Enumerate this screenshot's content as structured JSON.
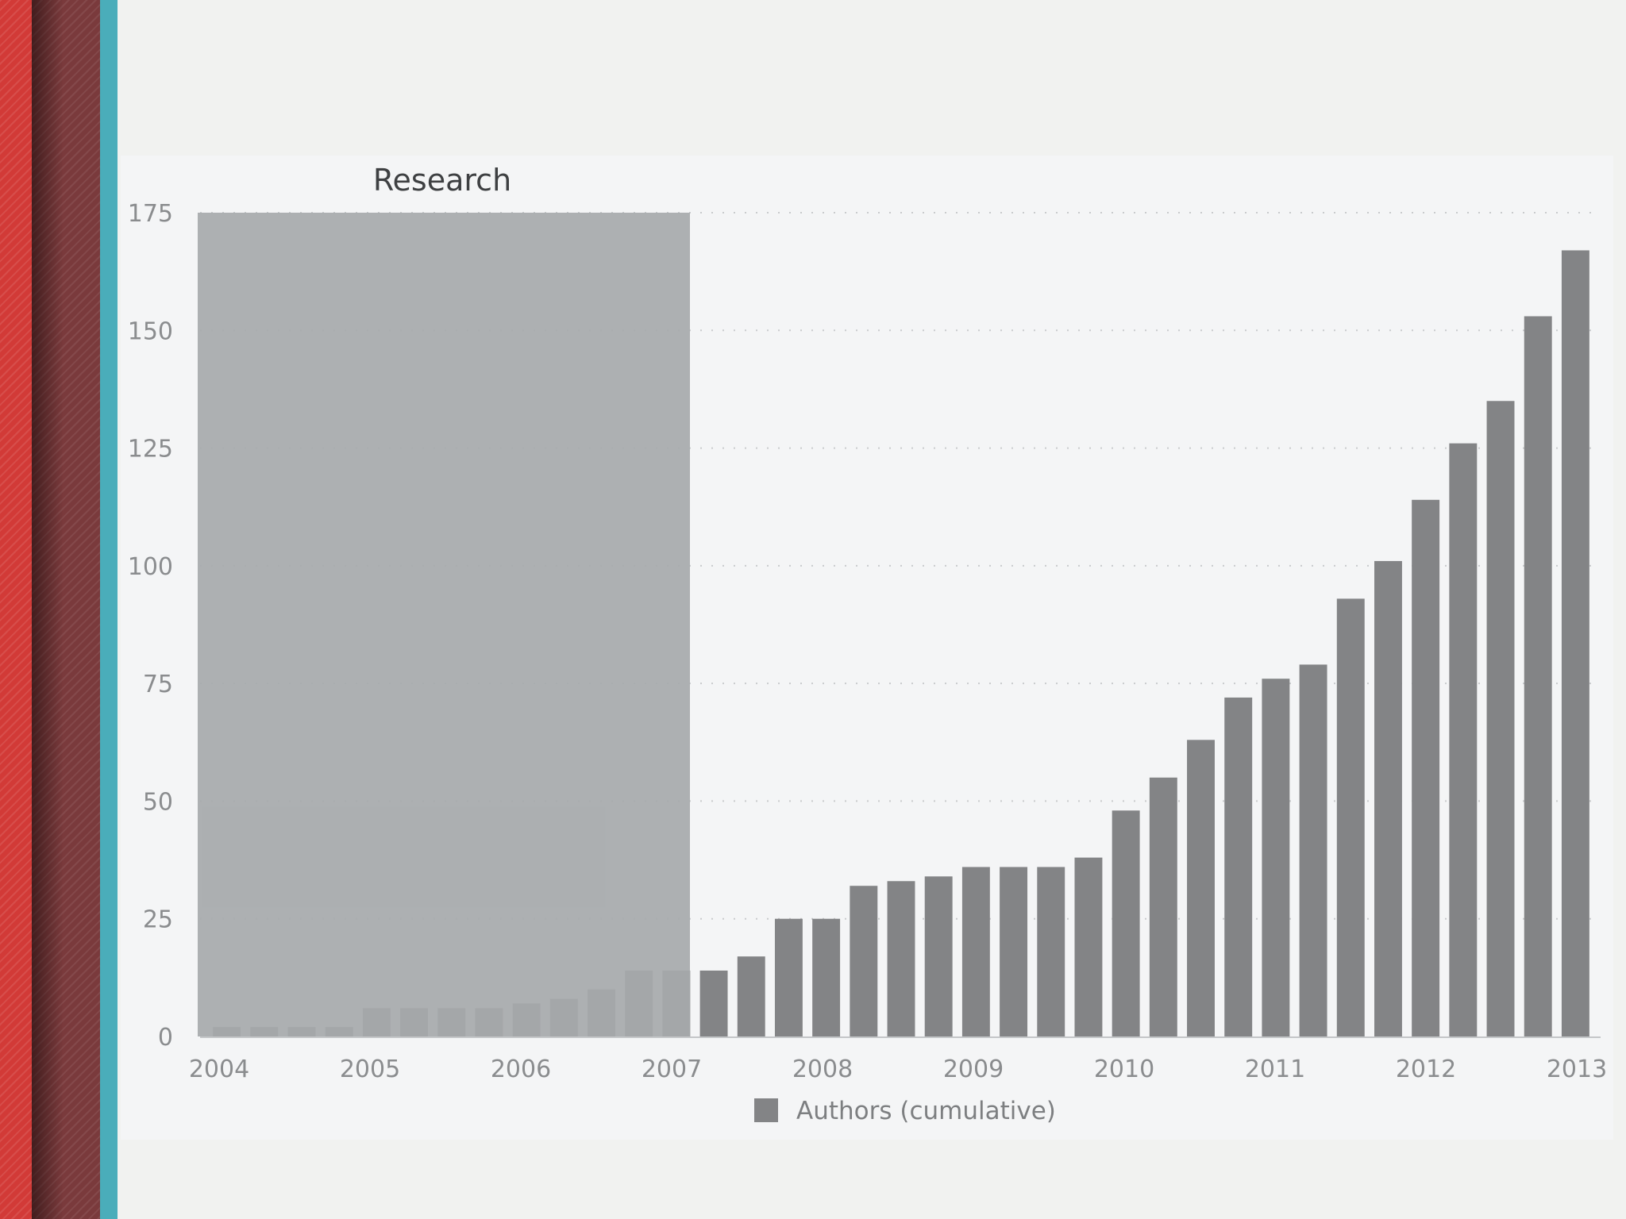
{
  "chart_data": {
    "type": "bar",
    "title": "",
    "xlabel": "",
    "ylabel": "",
    "ylim": [
      0,
      175
    ],
    "y_ticks": [
      0,
      25,
      50,
      75,
      100,
      125,
      150,
      175
    ],
    "x_tick_labels": [
      "2004",
      "2005",
      "2006",
      "2007",
      "2008",
      "2009",
      "2010",
      "2011",
      "2012",
      "2013"
    ],
    "grid": "horizontal dotted",
    "legend": {
      "position": "bottom-center",
      "entries": [
        "Authors (cumulative)"
      ]
    },
    "series": [
      {
        "name": "Authors (cumulative)",
        "color": "#838486",
        "values": [
          2,
          2,
          2,
          2,
          6,
          6,
          6,
          6,
          7,
          8,
          10,
          14,
          14,
          14,
          17,
          25,
          25,
          32,
          33,
          34,
          36,
          36,
          36,
          38,
          48,
          55,
          63,
          72,
          76,
          79,
          93,
          101,
          114,
          126,
          135,
          153,
          167
        ]
      }
    ],
    "annotations": [
      {
        "type": "band",
        "label": "Research",
        "x_start_year": 2004,
        "x_end_year": 2007,
        "color": "#a7aaac"
      }
    ]
  }
}
